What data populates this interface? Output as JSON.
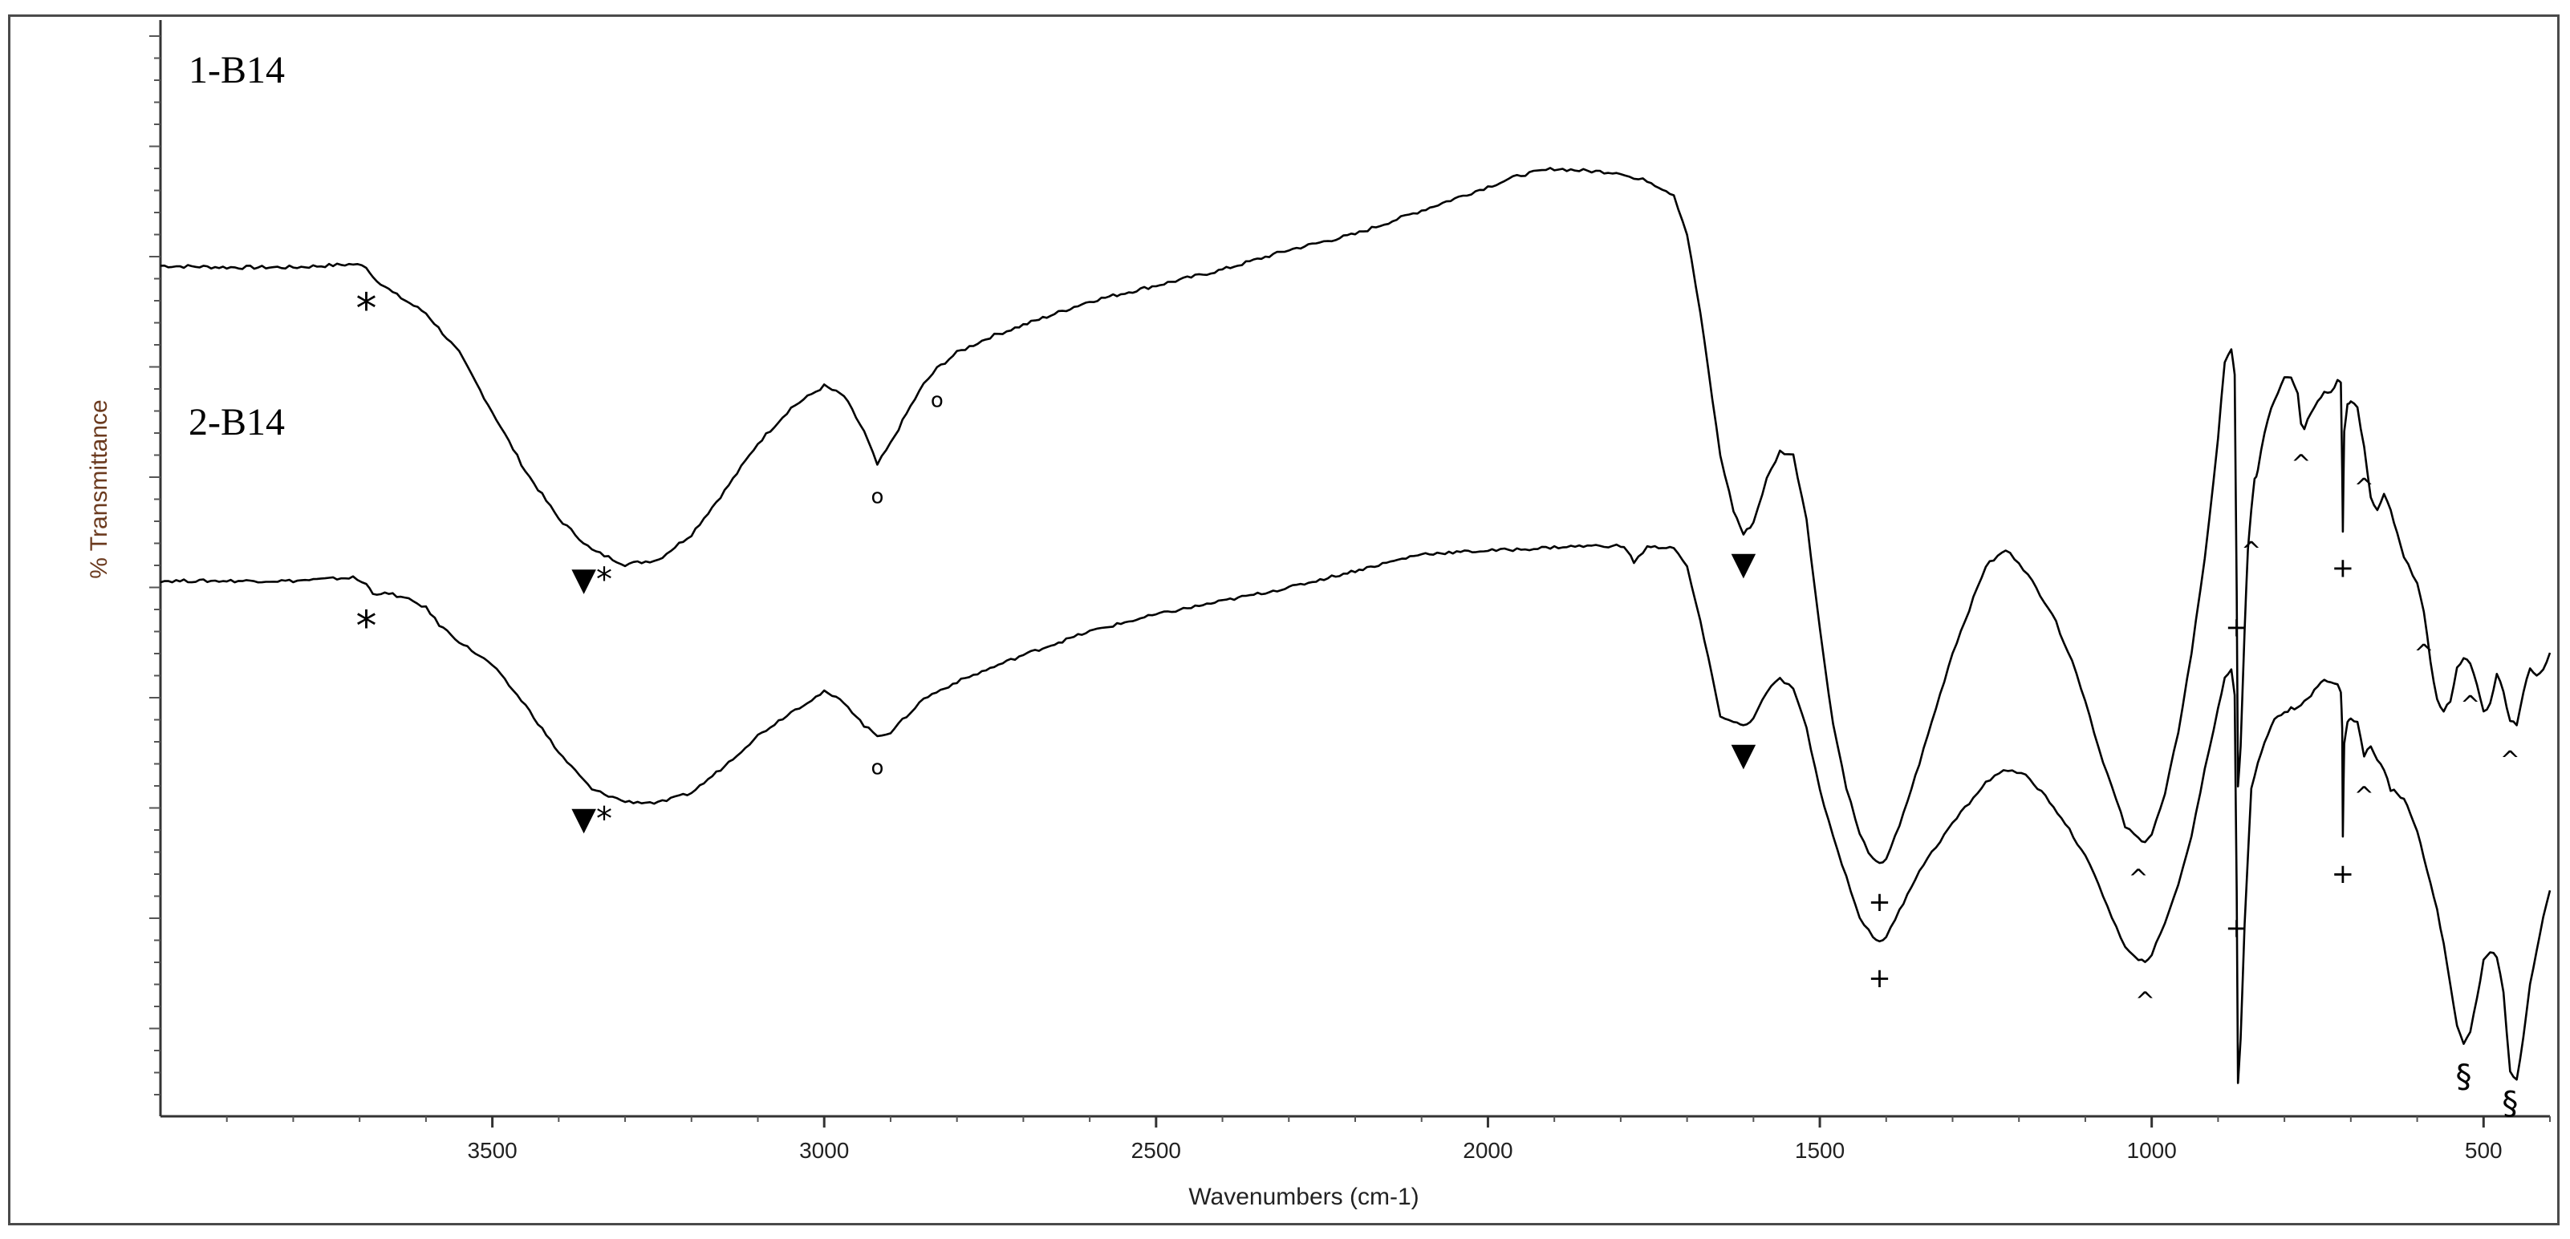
{
  "chart_data": {
    "type": "line",
    "title": "",
    "xlabel": "Wavenumbers (cm-1)",
    "ylabel": "% Transmittance",
    "xlim": [
      4000,
      400
    ],
    "x_reversed": true,
    "xticks": [
      3500,
      3000,
      2500,
      2000,
      1500,
      1000,
      500
    ],
    "grid": false,
    "series": [
      {
        "name": "1-B14",
        "x": [
          4000,
          3900,
          3800,
          3710,
          3690,
          3680,
          3650,
          3600,
          3550,
          3500,
          3450,
          3400,
          3350,
          3300,
          3250,
          3200,
          3150,
          3100,
          3050,
          3000,
          2970,
          2940,
          2920,
          2900,
          2870,
          2850,
          2830,
          2800,
          2750,
          2700,
          2600,
          2500,
          2400,
          2300,
          2200,
          2150,
          2100,
          2050,
          2000,
          1950,
          1900,
          1850,
          1800,
          1780,
          1760,
          1720,
          1700,
          1680,
          1650,
          1630,
          1615,
          1600,
          1580,
          1560,
          1540,
          1520,
          1500,
          1480,
          1460,
          1440,
          1420,
          1410,
          1400,
          1380,
          1350,
          1300,
          1250,
          1220,
          1200,
          1180,
          1150,
          1120,
          1100,
          1080,
          1060,
          1040,
          1020,
          1010,
          1000,
          980,
          960,
          940,
          920,
          900,
          890,
          880,
          875,
          872,
          870,
          866,
          860,
          855,
          850,
          845,
          840,
          830,
          820,
          810,
          800,
          790,
          780,
          775,
          770,
          760,
          750,
          740,
          730,
          720,
          715,
          713,
          712,
          710,
          705,
          700,
          690,
          680,
          670,
          660,
          650,
          640,
          630,
          620,
          600,
          590,
          580,
          570,
          560,
          550,
          540,
          530,
          520,
          510,
          500,
          490,
          480,
          470,
          460,
          450,
          440,
          430,
          420,
          410,
          400
        ],
        "y": [
          76.0,
          75.8,
          75.8,
          76.2,
          75.9,
          74.6,
          72.6,
          70.0,
          65.0,
          57.5,
          50.0,
          44.0,
          40.0,
          38.2,
          38.8,
          42.0,
          47.5,
          53.5,
          58.0,
          60.8,
          59.5,
          55.0,
          50.8,
          53.5,
          58.2,
          61.0,
          63.0,
          65.0,
          67.0,
          68.5,
          71.5,
          73.5,
          75.5,
          78.0,
          80.0,
          81.5,
          83.0,
          84.5,
          86.0,
          87.5,
          88.3,
          88.0,
          87.8,
          87.0,
          86.8,
          85.0,
          80.0,
          70.0,
          52.0,
          45.0,
          42.0,
          43.5,
          49.0,
          52.5,
          52.0,
          44.0,
          30.0,
          18.0,
          10.0,
          4.0,
          0.8,
          0.2,
          1.0,
          5.0,
          13.0,
          27.0,
          38.0,
          40.0,
          38.5,
          36.0,
          32.0,
          26.0,
          21.0,
          15.0,
          10.0,
          5.0,
          3.5,
          3.2,
          4.0,
          9.0,
          17.0,
          27.0,
          39.0,
          54.0,
          64.0,
          65.5,
          62.0,
          35.0,
          10.0,
          15.0,
          30.0,
          40.0,
          45.0,
          49.0,
          50.0,
          55.0,
          58.0,
          60.0,
          62.0,
          62.0,
          60.0,
          56.0,
          55.5,
          57.5,
          59.0,
          60.0,
          60.0,
          61.5,
          61.0,
          50.0,
          42.5,
          55.0,
          58.5,
          59.0,
          58.0,
          53.0,
          46.5,
          45.0,
          47.0,
          45.0,
          42.0,
          39.0,
          36.0,
          32.0,
          26.0,
          21.0,
          19.5,
          21.0,
          25.0,
          26.5,
          25.5,
          23.0,
          19.5,
          20.5,
          24.5,
          22.0,
          18.5,
          18.0,
          22.0,
          25.0,
          24.0,
          25.0,
          27.0
        ]
      },
      {
        "name": "2-B14",
        "x": [
          4000,
          3900,
          3800,
          3710,
          3690,
          3680,
          3650,
          3620,
          3600,
          3580,
          3550,
          3500,
          3450,
          3400,
          3350,
          3300,
          3250,
          3200,
          3150,
          3100,
          3050,
          3000,
          2970,
          2940,
          2920,
          2900,
          2870,
          2850,
          2800,
          2750,
          2700,
          2600,
          2500,
          2400,
          2300,
          2200,
          2100,
          2000,
          1950,
          1900,
          1850,
          1800,
          1790,
          1780,
          1760,
          1720,
          1700,
          1680,
          1650,
          1630,
          1615,
          1600,
          1580,
          1560,
          1540,
          1520,
          1500,
          1480,
          1460,
          1440,
          1420,
          1410,
          1400,
          1380,
          1350,
          1300,
          1250,
          1230,
          1210,
          1190,
          1160,
          1130,
          1100,
          1080,
          1060,
          1040,
          1020,
          1010,
          1000,
          980,
          960,
          940,
          920,
          900,
          890,
          880,
          875,
          872,
          870,
          866,
          860,
          850,
          840,
          830,
          820,
          810,
          800,
          790,
          780,
          770,
          760,
          750,
          740,
          730,
          720,
          715,
          713,
          712,
          710,
          705,
          700,
          690,
          680,
          670,
          660,
          650,
          640,
          630,
          620,
          610,
          600,
          590,
          580,
          570,
          560,
          550,
          540,
          530,
          520,
          510,
          500,
          490,
          480,
          470,
          460,
          450,
          440,
          430,
          420,
          410,
          400
        ],
        "y": [
          76.0,
          76.0,
          76.0,
          76.5,
          75.5,
          74.2,
          74.0,
          73.0,
          72.0,
          69.5,
          67.0,
          63.5,
          57.5,
          50.5,
          45.0,
          43.2,
          43.0,
          44.5,
          48.5,
          53.0,
          56.5,
          59.5,
          58.0,
          54.5,
          53.0,
          53.5,
          56.5,
          58.5,
          61.0,
          63.0,
          65.0,
          68.5,
          71.0,
          73.0,
          75.0,
          77.5,
          80.0,
          80.5,
          80.7,
          81.0,
          81.2,
          81.2,
          80.5,
          78.8,
          81.0,
          81.0,
          78.0,
          70.0,
          56.0,
          55.0,
          54.5,
          55.5,
          59.5,
          61.5,
          60.0,
          54.0,
          45.0,
          38.0,
          32.0,
          26.0,
          23.0,
          22.5,
          23.0,
          27.0,
          33.0,
          40.0,
          46.0,
          47.5,
          48.0,
          47.0,
          44.0,
          40.0,
          35.0,
          31.0,
          26.0,
          21.5,
          19.5,
          19.5,
          20.5,
          25.0,
          31.0,
          38.0,
          48.0,
          57.0,
          61.5,
          63.0,
          59.0,
          30.0,
          1.5,
          8.0,
          25.0,
          45.0,
          49.0,
          52.0,
          54.5,
          56.0,
          56.5,
          57.0,
          57.0,
          58.0,
          59.0,
          60.5,
          61.5,
          61.0,
          60.5,
          59.5,
          54.0,
          38.0,
          52.0,
          55.0,
          55.5,
          55.0,
          50.0,
          51.5,
          49.5,
          48.0,
          45.0,
          44.5,
          43.5,
          41.5,
          39.0,
          35.0,
          31.0,
          27.0,
          22.0,
          16.0,
          10.0,
          7.0,
          9.0,
          14.0,
          19.5,
          21.0,
          20.0,
          15.0,
          3.0,
          2.0,
          8.0,
          16.0,
          21.0,
          26.0,
          30.0
        ]
      }
    ],
    "series_labels": [
      "1-B14",
      "2-B14"
    ],
    "annotations": [
      {
        "text": "*",
        "series": 0,
        "x": 3690
      },
      {
        "text": "▼*",
        "series": 0,
        "x": 3350
      },
      {
        "text": "o",
        "series": 0,
        "x": 2920
      },
      {
        "text": "o",
        "series": 0,
        "x": 2830
      },
      {
        "text": "▼",
        "series": 0,
        "x": 1615
      },
      {
        "text": "+",
        "series": 0,
        "x": 1410
      },
      {
        "text": "^",
        "series": 0,
        "x": 1020
      },
      {
        "text": "+",
        "series": 0,
        "x": 872
      },
      {
        "text": "^",
        "series": 0,
        "x": 850
      },
      {
        "text": "^",
        "series": 0,
        "x": 775
      },
      {
        "text": "+",
        "series": 0,
        "x": 712
      },
      {
        "text": "^",
        "series": 0,
        "x": 680
      },
      {
        "text": "^",
        "series": 0,
        "x": 590
      },
      {
        "text": "^",
        "series": 0,
        "x": 520
      },
      {
        "text": "^",
        "series": 0,
        "x": 460
      },
      {
        "text": "*",
        "series": 1,
        "x": 3690
      },
      {
        "text": "▼*",
        "series": 1,
        "x": 3350
      },
      {
        "text": "o",
        "series": 1,
        "x": 2920
      },
      {
        "text": "▼",
        "series": 1,
        "x": 1615
      },
      {
        "text": "+",
        "series": 1,
        "x": 1410
      },
      {
        "text": "^",
        "series": 1,
        "x": 1010
      },
      {
        "text": "+",
        "series": 1,
        "x": 872
      },
      {
        "text": "+",
        "series": 1,
        "x": 712
      },
      {
        "text": "^",
        "series": 1,
        "x": 680
      },
      {
        "text": "§",
        "series": 1,
        "x": 530
      },
      {
        "text": "§",
        "series": 1,
        "x": 460
      }
    ]
  }
}
